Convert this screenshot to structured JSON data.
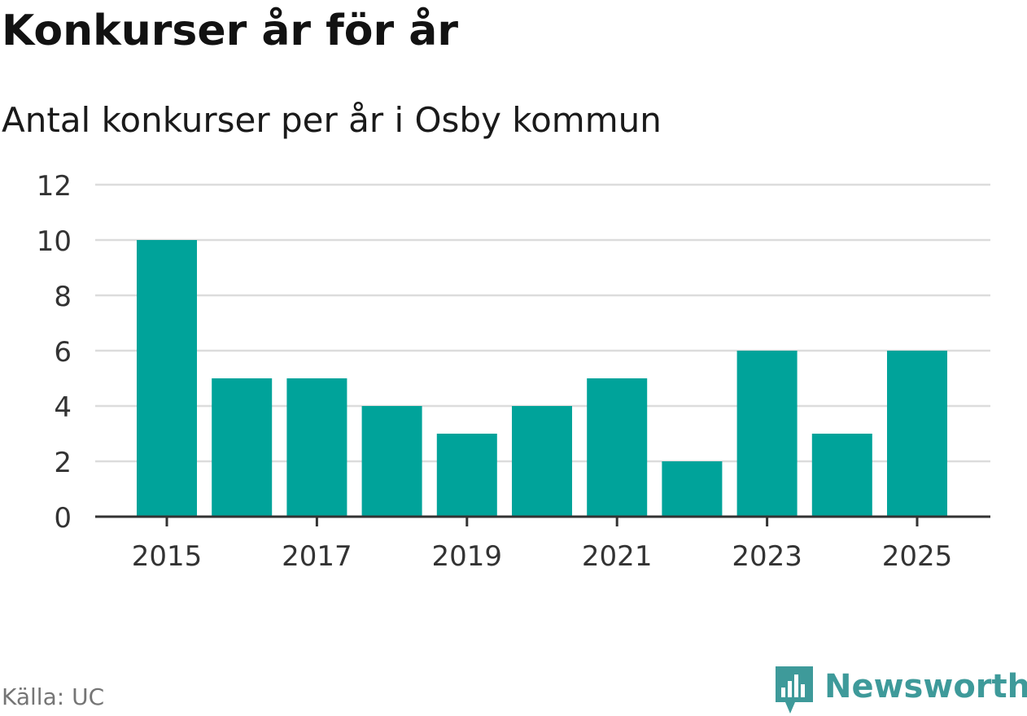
{
  "chart_data": {
    "type": "bar",
    "title": "Konkurser år för år",
    "subtitle": "Antal konkurser per år i Osby kommun",
    "categories": [
      "2015",
      "2016",
      "2017",
      "2018",
      "2019",
      "2020",
      "2021",
      "2022",
      "2023",
      "2024",
      "2025"
    ],
    "values": [
      10,
      5,
      5,
      4,
      3,
      4,
      5,
      2,
      6,
      3,
      6
    ],
    "x_tick_labels": [
      "2015",
      "2017",
      "2019",
      "2021",
      "2023",
      "2025"
    ],
    "y_ticks": [
      0,
      2,
      4,
      6,
      8,
      10,
      12
    ],
    "ylim": [
      0,
      12
    ],
    "xlabel": "",
    "ylabel": "",
    "grid": true,
    "bar_color": "#00a39a"
  },
  "footer": {
    "source": "Källa: UC",
    "brand": "Newsworthy",
    "brand_icon": "newsworthy-logo-icon",
    "brand_color": "#3e9a9a"
  }
}
